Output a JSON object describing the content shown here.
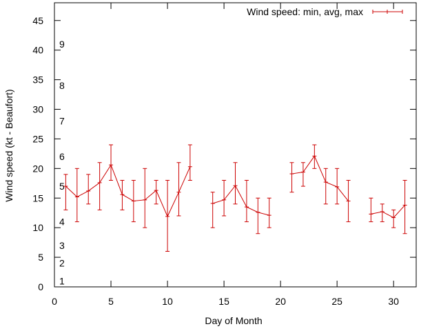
{
  "chart_data": {
    "type": "line",
    "title": "",
    "xlabel": "Day of Month",
    "ylabel": "Wind speed (kt - Beaufort)",
    "xlim": [
      0,
      32
    ],
    "ylim": [
      0,
      48
    ],
    "x_ticks": [
      0,
      5,
      10,
      15,
      20,
      25,
      30
    ],
    "y_ticks": [
      0,
      5,
      10,
      15,
      20,
      25,
      30,
      35,
      40,
      45
    ],
    "beaufort_labels": [
      {
        "label": "1",
        "y": 1
      },
      {
        "label": "2",
        "y": 4
      },
      {
        "label": "3",
        "y": 7
      },
      {
        "label": "4",
        "y": 11
      },
      {
        "label": "5",
        "y": 17
      },
      {
        "label": "6",
        "y": 22
      },
      {
        "label": "7",
        "y": 28
      },
      {
        "label": "8",
        "y": 34
      },
      {
        "label": "9",
        "y": 41
      }
    ],
    "legend": {
      "label": "Wind speed: min, avg, max",
      "position": "top-right"
    },
    "color": "#cc0000",
    "grid": false,
    "series": [
      {
        "name": "Wind speed: min, avg, max",
        "segments": [
          [
            {
              "x": 1,
              "min": 13,
              "avg": 17,
              "max": 19
            },
            {
              "x": 2,
              "min": 11,
              "avg": 15.2,
              "max": 20
            },
            {
              "x": 3,
              "min": 14,
              "avg": 16.2,
              "max": 19
            },
            {
              "x": 4,
              "min": 13,
              "avg": 17.6,
              "max": 21
            },
            {
              "x": 5,
              "min": 18,
              "avg": 20.6,
              "max": 24
            },
            {
              "x": 6,
              "min": 13,
              "avg": 15.6,
              "max": 18
            },
            {
              "x": 7,
              "min": 11,
              "avg": 14.5,
              "max": 18
            },
            {
              "x": 8,
              "min": 10,
              "avg": 14.7,
              "max": 20
            },
            {
              "x": 9,
              "min": 14,
              "avg": 16.3,
              "max": 18
            },
            {
              "x": 10,
              "min": 6,
              "avg": 11.9,
              "max": 18
            },
            {
              "x": 11,
              "min": 12,
              "avg": 16,
              "max": 21
            },
            {
              "x": 12,
              "min": 18,
              "avg": 20.3,
              "max": 24
            }
          ],
          [
            {
              "x": 14,
              "min": 10,
              "avg": 14.1,
              "max": 16
            },
            {
              "x": 15,
              "min": 12,
              "avg": 14.7,
              "max": 18
            },
            {
              "x": 16,
              "min": 14,
              "avg": 17.1,
              "max": 21
            },
            {
              "x": 17,
              "min": 11,
              "avg": 13.5,
              "max": 18
            },
            {
              "x": 18,
              "min": 9,
              "avg": 12.6,
              "max": 15
            },
            {
              "x": 19,
              "min": 10,
              "avg": 12.1,
              "max": 15
            }
          ],
          [
            {
              "x": 21,
              "min": 16,
              "avg": 19.1,
              "max": 21
            },
            {
              "x": 22,
              "min": 17,
              "avg": 19.4,
              "max": 21
            },
            {
              "x": 23,
              "min": 20,
              "avg": 22.1,
              "max": 24
            },
            {
              "x": 24,
              "min": 14,
              "avg": 17.7,
              "max": 20
            },
            {
              "x": 25,
              "min": 14,
              "avg": 16.9,
              "max": 20
            },
            {
              "x": 26,
              "min": 11,
              "avg": 14.5,
              "max": 18
            }
          ],
          [
            {
              "x": 28,
              "min": 11,
              "avg": 12.3,
              "max": 15
            },
            {
              "x": 29,
              "min": 11,
              "avg": 12.7,
              "max": 14
            },
            {
              "x": 30,
              "min": 10,
              "avg": 11.7,
              "max": 13
            },
            {
              "x": 31,
              "min": 9,
              "avg": 13.8,
              "max": 18
            }
          ]
        ]
      }
    ]
  }
}
